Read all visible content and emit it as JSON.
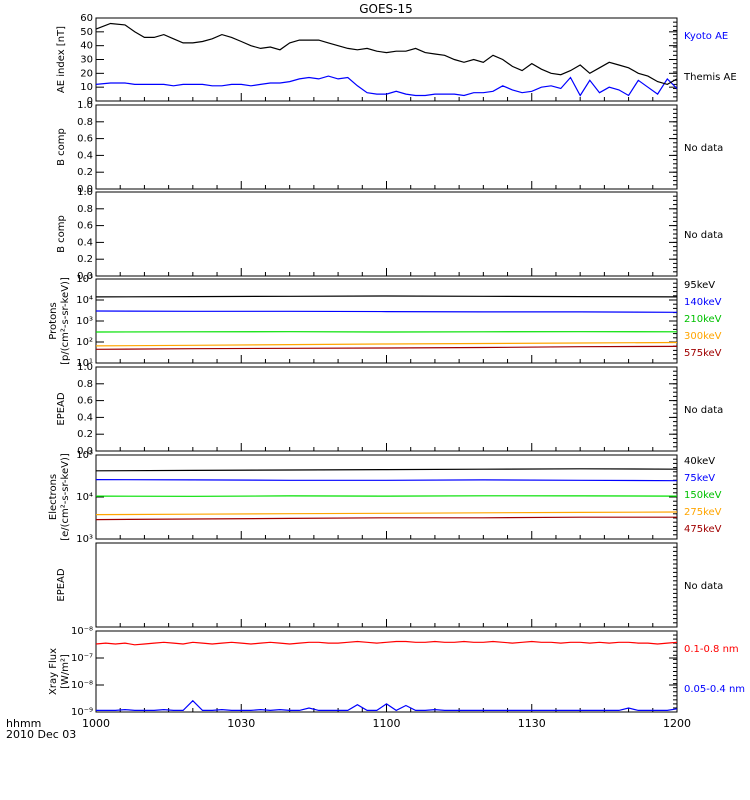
{
  "title": "GOES-15",
  "footer": {
    "line1": "hhmm",
    "line2": "2010 Dec 03"
  },
  "time_ticks": [
    "1000",
    "1030",
    "1100",
    "1130",
    "1200"
  ],
  "chart_data": [
    {
      "type": "line",
      "panel": "ae",
      "ylabel": "AE index [nT]",
      "ylim": [
        0,
        60
      ],
      "yticks": [
        "0",
        "10",
        "20",
        "30",
        "40",
        "50",
        "60"
      ],
      "x": [
        0,
        3,
        6,
        8,
        10,
        12,
        14,
        16,
        18,
        20,
        22,
        24,
        26,
        28,
        30,
        32,
        34,
        36,
        38,
        40,
        42,
        44,
        46,
        48,
        50,
        52,
        54,
        56,
        58,
        60,
        62,
        64,
        66,
        68,
        70,
        72,
        74,
        76,
        78,
        80,
        82,
        84,
        86,
        88,
        90,
        92,
        94,
        96,
        98,
        100,
        102,
        104,
        106,
        108,
        110,
        112,
        114,
        116,
        118,
        120
      ],
      "series": [
        {
          "name": "Kyoto AE",
          "color": "#0000ff",
          "values": [
            12,
            13,
            13,
            12,
            12,
            12,
            12,
            11,
            12,
            12,
            12,
            11,
            11,
            12,
            12,
            11,
            12,
            13,
            13,
            14,
            16,
            17,
            16,
            18,
            16,
            17,
            11,
            6,
            5,
            5,
            7,
            5,
            4,
            4,
            5,
            5,
            5,
            4,
            6,
            6,
            7,
            11,
            8,
            6,
            7,
            10,
            11,
            9,
            17,
            4,
            15,
            6,
            10,
            8,
            4,
            15,
            10,
            5,
            16,
            9
          ]
        },
        {
          "name": "Themis AE",
          "color": "#000000",
          "values": [
            52,
            56,
            55,
            50,
            46,
            46,
            48,
            45,
            42,
            42,
            43,
            45,
            48,
            46,
            43,
            40,
            38,
            39,
            37,
            42,
            44,
            44,
            44,
            42,
            40,
            38,
            37,
            38,
            36,
            35,
            36,
            36,
            38,
            35,
            34,
            33,
            30,
            28,
            30,
            28,
            33,
            30,
            25,
            22,
            27,
            23,
            20,
            19,
            22,
            26,
            20,
            24,
            28,
            26,
            24,
            20,
            18,
            14,
            12,
            16
          ]
        }
      ]
    },
    {
      "type": "line",
      "panel": "bcomp1",
      "ylabel": "B comp",
      "ylim": [
        0,
        1
      ],
      "yticks": [
        "0.0",
        "0.2",
        "0.4",
        "0.6",
        "0.8",
        "1.0"
      ],
      "note": "No data",
      "series": []
    },
    {
      "type": "line",
      "panel": "bcomp2",
      "ylabel": "B comp",
      "ylim": [
        0,
        1
      ],
      "yticks": [
        "0.0",
        "0.2",
        "0.4",
        "0.6",
        "0.8",
        "1.0"
      ],
      "note": "No data",
      "series": []
    },
    {
      "type": "line",
      "panel": "protons",
      "ylabel": "Protons",
      "ylabel2": "[p/(cm²-s-sr-keV)]",
      "scale": "log",
      "ylim": [
        10,
        100000
      ],
      "yticks": [
        "10¹",
        "10²",
        "10³",
        "10⁴",
        "10⁵"
      ],
      "x": [
        0,
        20,
        40,
        60,
        80,
        100,
        120
      ],
      "series": [
        {
          "name": "575keV",
          "color": "#a00000",
          "values": [
            45,
            48,
            50,
            52,
            55,
            60,
            62
          ]
        },
        {
          "name": "300keV",
          "color": "#ffa500",
          "values": [
            65,
            70,
            75,
            80,
            85,
            90,
            95
          ]
        },
        {
          "name": "210keV",
          "color": "#00e000",
          "values": [
            300,
            305,
            310,
            300,
            305,
            310,
            305
          ]
        },
        {
          "name": "140keV",
          "color": "#0000ff",
          "values": [
            3000,
            2900,
            2900,
            2800,
            2700,
            2700,
            2600
          ]
        },
        {
          "name": "95keV",
          "color": "#000000",
          "values": [
            14000,
            14500,
            15000,
            15500,
            15000,
            14500,
            14000
          ]
        }
      ]
    },
    {
      "type": "line",
      "panel": "epead1",
      "ylabel": "EPEAD",
      "ylim": [
        0,
        1
      ],
      "yticks": [
        "0.0",
        "0.2",
        "0.4",
        "0.6",
        "0.8",
        "1.0"
      ],
      "note": "No data",
      "series": []
    },
    {
      "type": "line",
      "panel": "electrons",
      "ylabel": "Electrons",
      "ylabel2": "[e/(cm²-s-sr-keV)]",
      "scale": "log",
      "ylim": [
        1000,
        100000
      ],
      "yticks": [
        "10³",
        "10⁴",
        "10⁵"
      ],
      "x": [
        0,
        20,
        40,
        60,
        80,
        100,
        120
      ],
      "series": [
        {
          "name": "475keV",
          "color": "#a00000",
          "values": [
            2900,
            3000,
            3100,
            3200,
            3200,
            3300,
            3300
          ]
        },
        {
          "name": "275keV",
          "color": "#ffa500",
          "values": [
            3800,
            3900,
            4000,
            4100,
            4200,
            4300,
            4400
          ]
        },
        {
          "name": "150keV",
          "color": "#00e000",
          "values": [
            10500,
            10400,
            10600,
            10500,
            10700,
            10600,
            10500
          ]
        },
        {
          "name": "75keV",
          "color": "#0000ff",
          "values": [
            26000,
            25500,
            25000,
            25000,
            25500,
            25000,
            24500
          ]
        },
        {
          "name": "40keV",
          "color": "#000000",
          "values": [
            42000,
            43000,
            44000,
            45000,
            46000,
            47000,
            46000
          ]
        }
      ]
    },
    {
      "type": "line",
      "panel": "epead2",
      "ylabel": "EPEAD",
      "ylim": [
        0,
        1
      ],
      "yticks": [],
      "note": "No data",
      "series": []
    },
    {
      "type": "line",
      "panel": "xray",
      "ylabel": "Xray Flux",
      "ylabel2": "[W/m²]",
      "scale": "log",
      "ylim": [
        1e-09,
        1e-08
      ],
      "yticks": [
        "10⁻⁹",
        "10⁻⁸",
        "10⁻⁷",
        "10⁻⁸"
      ],
      "x": [
        0,
        2,
        4,
        6,
        8,
        10,
        12,
        14,
        16,
        18,
        20,
        22,
        24,
        26,
        28,
        30,
        32,
        34,
        36,
        38,
        40,
        42,
        44,
        46,
        48,
        50,
        52,
        54,
        56,
        58,
        60,
        62,
        64,
        66,
        68,
        70,
        72,
        74,
        76,
        78,
        80,
        82,
        84,
        86,
        88,
        90,
        92,
        94,
        96,
        98,
        100,
        102,
        104,
        106,
        108,
        110,
        112,
        114,
        116,
        118,
        120
      ],
      "series": [
        {
          "name": "0.1-0.8 nm",
          "color": "#ff0000",
          "values": [
            0.84,
            0.85,
            0.84,
            0.85,
            0.83,
            0.84,
            0.85,
            0.86,
            0.85,
            0.84,
            0.86,
            0.85,
            0.84,
            0.85,
            0.86,
            0.85,
            0.84,
            0.85,
            0.86,
            0.85,
            0.84,
            0.85,
            0.86,
            0.86,
            0.85,
            0.85,
            0.86,
            0.87,
            0.86,
            0.85,
            0.86,
            0.87,
            0.87,
            0.86,
            0.86,
            0.87,
            0.86,
            0.86,
            0.87,
            0.86,
            0.86,
            0.87,
            0.86,
            0.85,
            0.86,
            0.87,
            0.86,
            0.86,
            0.85,
            0.86,
            0.86,
            0.85,
            0.86,
            0.85,
            0.86,
            0.86,
            0.85,
            0.85,
            0.84,
            0.85,
            0.86
          ]
        },
        {
          "name": "0.05-0.4 nm",
          "color": "#0000ff",
          "values": [
            0.02,
            0.02,
            0.02,
            0.03,
            0.02,
            0.02,
            0.02,
            0.03,
            0.02,
            0.02,
            0.14,
            0.02,
            0.02,
            0.03,
            0.02,
            0.02,
            0.02,
            0.03,
            0.02,
            0.03,
            0.02,
            0.02,
            0.05,
            0.02,
            0.02,
            0.02,
            0.02,
            0.09,
            0.02,
            0.02,
            0.1,
            0.02,
            0.08,
            0.02,
            0.02,
            0.03,
            0.02,
            0.02,
            0.02,
            0.02,
            0.02,
            0.02,
            0.02,
            0.02,
            0.02,
            0.02,
            0.02,
            0.02,
            0.02,
            0.02,
            0.02,
            0.02,
            0.02,
            0.02,
            0.02,
            0.05,
            0.02,
            0.02,
            0.02,
            0.02,
            0.04
          ]
        }
      ]
    }
  ]
}
